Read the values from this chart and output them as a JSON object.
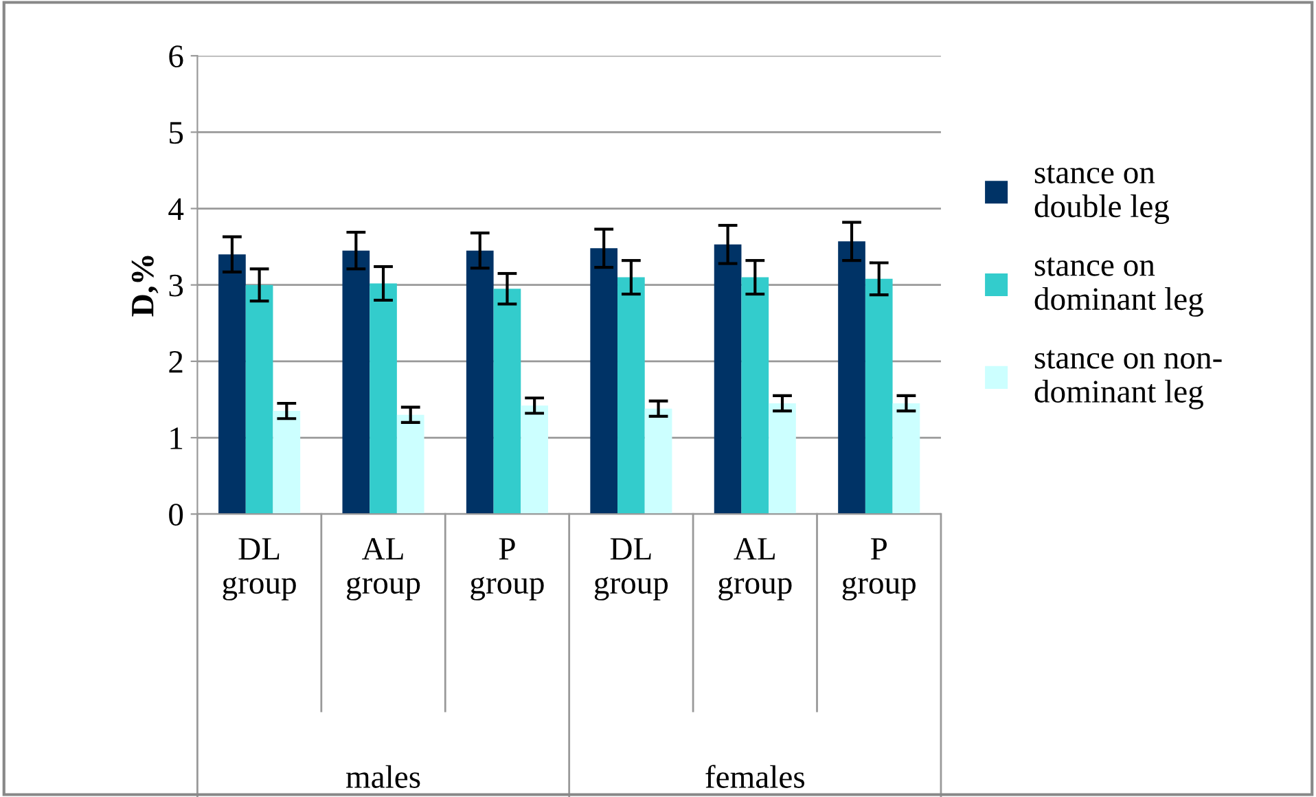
{
  "chart_data": {
    "type": "bar",
    "ylabel": "D,%",
    "categories": [
      "DL\ngroup",
      "AL\ngroup",
      "P\ngroup",
      "DL\ngroup",
      "AL\ngroup",
      "P\ngroup"
    ],
    "series": [
      {
        "name": "stance on\ndouble leg",
        "color": "#003366",
        "values": [
          3.4,
          3.45,
          3.45,
          3.48,
          3.53,
          3.57
        ],
        "errors": [
          0.23,
          0.24,
          0.23,
          0.25,
          0.25,
          0.25
        ]
      },
      {
        "name": "stance on\ndominant leg",
        "color": "#33cccc",
        "values": [
          3.0,
          3.02,
          2.95,
          3.1,
          3.1,
          3.08
        ],
        "errors": [
          0.21,
          0.22,
          0.2,
          0.22,
          0.22,
          0.21
        ]
      },
      {
        "name": "stance on non-\ndominant leg",
        "color": "#ccffff",
        "values": [
          1.35,
          1.3,
          1.42,
          1.38,
          1.45,
          1.45
        ],
        "errors": [
          0.1,
          0.1,
          0.1,
          0.1,
          0.1,
          0.1
        ]
      }
    ],
    "annotations": [
      "males",
      "females"
    ],
    "ylim": [
      0,
      6
    ],
    "yticks": [
      0,
      1,
      2,
      3,
      4,
      5,
      6
    ],
    "grid": "y",
    "legend": "right"
  }
}
